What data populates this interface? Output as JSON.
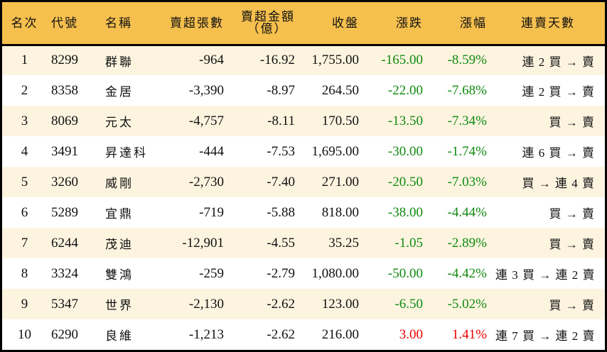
{
  "colors": {
    "header_bg": "#f6c04e",
    "row_alt_bg": "#fdf4e0",
    "down": "#0f8a0f",
    "up": "#f00000"
  },
  "table": {
    "headers": {
      "rank": "名次",
      "code": "代號",
      "name": "名稱",
      "net_sell_shares": "賣超張數",
      "net_sell_amount_line1": "賣超金額",
      "net_sell_amount_line2": "（億）",
      "close": "收盤",
      "change": "漲跌",
      "change_pct": "漲幅",
      "streak": "連賣天數"
    },
    "rows": [
      {
        "rank": "1",
        "code": "8299",
        "name": "群聯",
        "shares": "-964",
        "amount": "-16.92",
        "close": "1,755.00",
        "change": "-165.00",
        "pct": "-8.59%",
        "streak": "連 2 買 → 賣",
        "dir": "down"
      },
      {
        "rank": "2",
        "code": "8358",
        "name": "金居",
        "shares": "-3,390",
        "amount": "-8.97",
        "close": "264.50",
        "change": "-22.00",
        "pct": "-7.68%",
        "streak": "連 2 買 → 賣",
        "dir": "down"
      },
      {
        "rank": "3",
        "code": "8069",
        "name": "元太",
        "shares": "-4,757",
        "amount": "-8.11",
        "close": "170.50",
        "change": "-13.50",
        "pct": "-7.34%",
        "streak": "買 → 賣",
        "dir": "down"
      },
      {
        "rank": "4",
        "code": "3491",
        "name": "昇達科",
        "shares": "-444",
        "amount": "-7.53",
        "close": "1,695.00",
        "change": "-30.00",
        "pct": "-1.74%",
        "streak": "連 6 買 → 賣",
        "dir": "down"
      },
      {
        "rank": "5",
        "code": "3260",
        "name": "威剛",
        "shares": "-2,730",
        "amount": "-7.40",
        "close": "271.00",
        "change": "-20.50",
        "pct": "-7.03%",
        "streak": "買 → 連 4 賣",
        "dir": "down"
      },
      {
        "rank": "6",
        "code": "5289",
        "name": "宜鼎",
        "shares": "-719",
        "amount": "-5.88",
        "close": "818.00",
        "change": "-38.00",
        "pct": "-4.44%",
        "streak": "買 → 賣",
        "dir": "down"
      },
      {
        "rank": "7",
        "code": "6244",
        "name": "茂迪",
        "shares": "-12,901",
        "amount": "-4.55",
        "close": "35.25",
        "change": "-1.05",
        "pct": "-2.89%",
        "streak": "買 → 賣",
        "dir": "down"
      },
      {
        "rank": "8",
        "code": "3324",
        "name": "雙鴻",
        "shares": "-259",
        "amount": "-2.79",
        "close": "1,080.00",
        "change": "-50.00",
        "pct": "-4.42%",
        "streak": "連 3 買 → 連 2 賣",
        "dir": "down"
      },
      {
        "rank": "9",
        "code": "5347",
        "name": "世界",
        "shares": "-2,130",
        "amount": "-2.62",
        "close": "123.00",
        "change": "-6.50",
        "pct": "-5.02%",
        "streak": "買 → 賣",
        "dir": "down"
      },
      {
        "rank": "10",
        "code": "6290",
        "name": "良維",
        "shares": "-1,213",
        "amount": "-2.62",
        "close": "216.00",
        "change": "3.00",
        "pct": "1.41%",
        "streak": "連 7 買 → 連 2 賣",
        "dir": "up"
      }
    ]
  }
}
